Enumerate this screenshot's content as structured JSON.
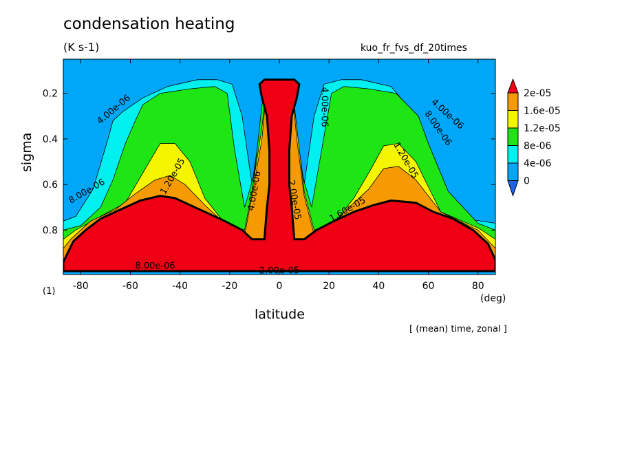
{
  "title": "condensation heating",
  "units": "(K s-1)",
  "run_name": "kuo_fr_fvs_df_20times",
  "panel_label": "(1)",
  "x_unit": "(deg)",
  "averaging_note": "[ (mean) time, zonal ]",
  "chart_data": {
    "type": "heatmap",
    "title": "condensation heating",
    "xlabel": "latitude",
    "ylabel": "sigma",
    "xlim": [
      -87,
      87
    ],
    "ylim": [
      0.995,
      0.05
    ],
    "y_reversed": true,
    "grid": false,
    "x_ticks": [
      -80,
      -60,
      -40,
      -20,
      0,
      20,
      40,
      60,
      80
    ],
    "y_ticks": [
      0.2,
      0.4,
      0.6,
      0.8
    ],
    "colorbar": {
      "placement": "right",
      "labels": [
        "2e-05",
        "1.6e-05",
        "1.2e-05",
        "8e-06",
        "4e-06",
        "0"
      ],
      "levels": [
        0,
        4e-06,
        8e-06,
        1.2e-05,
        1.6e-05,
        2e-05
      ],
      "colors": [
        "#1f64e6",
        "#00a6f7",
        "#00f0f0",
        "#1ee614",
        "#f5f500",
        "#f59a00",
        "#f00014"
      ]
    },
    "contour_labels": [
      "4.00e-06",
      "8.00e-06",
      "1.20e-05",
      "1.60e-05",
      "2.00e-05"
    ],
    "regions": [
      {
        "level": 4e-06,
        "points": [
          [
            -87,
            0.76
          ],
          [
            -87,
            0.98
          ],
          [
            87,
            0.98
          ],
          [
            87,
            0.77
          ],
          [
            75,
            0.75
          ],
          [
            62,
            0.57
          ],
          [
            55,
            0.3
          ],
          [
            45,
            0.17
          ],
          [
            33,
            0.14
          ],
          [
            25,
            0.14
          ],
          [
            18,
            0.16
          ],
          [
            14,
            0.3
          ],
          [
            10,
            0.6
          ],
          [
            6,
            0.3
          ],
          [
            5,
            0.16
          ],
          [
            0,
            0.14
          ],
          [
            -5,
            0.16
          ],
          [
            -7,
            0.3
          ],
          [
            -11,
            0.6
          ],
          [
            -15,
            0.3
          ],
          [
            -19,
            0.16
          ],
          [
            -25,
            0.14
          ],
          [
            -33,
            0.14
          ],
          [
            -45,
            0.17
          ],
          [
            -55,
            0.22
          ],
          [
            -63,
            0.28
          ],
          [
            -67,
            0.32
          ],
          [
            -69,
            0.4
          ],
          [
            -75,
            0.62
          ],
          [
            -82,
            0.74
          ]
        ]
      },
      {
        "level": 8e-06,
        "points": [
          [
            -87,
            0.8
          ],
          [
            -87,
            0.98
          ],
          [
            87,
            0.98
          ],
          [
            87,
            0.8
          ],
          [
            80,
            0.77
          ],
          [
            68,
            0.63
          ],
          [
            60,
            0.42
          ],
          [
            56,
            0.3
          ],
          [
            47,
            0.2
          ],
          [
            36,
            0.18
          ],
          [
            26,
            0.17
          ],
          [
            21,
            0.2
          ],
          [
            17,
            0.45
          ],
          [
            13,
            0.7
          ],
          [
            9,
            0.55
          ],
          [
            6,
            0.25
          ],
          [
            5,
            0.16
          ],
          [
            0,
            0.14
          ],
          [
            -5,
            0.16
          ],
          [
            -7,
            0.25
          ],
          [
            -10,
            0.55
          ],
          [
            -14,
            0.7
          ],
          [
            -18,
            0.45
          ],
          [
            -21,
            0.2
          ],
          [
            -26,
            0.17
          ],
          [
            -36,
            0.18
          ],
          [
            -48,
            0.2
          ],
          [
            -55,
            0.25
          ],
          [
            -58,
            0.32
          ],
          [
            -62,
            0.42
          ],
          [
            -67,
            0.58
          ],
          [
            -72,
            0.7
          ],
          [
            -80,
            0.78
          ]
        ]
      },
      {
        "level": 1.2e-05,
        "points": [
          [
            -87,
            0.84
          ],
          [
            -87,
            0.98
          ],
          [
            87,
            0.98
          ],
          [
            87,
            0.84
          ],
          [
            80,
            0.79
          ],
          [
            65,
            0.72
          ],
          [
            55,
            0.5
          ],
          [
            48,
            0.42
          ],
          [
            42,
            0.43
          ],
          [
            37,
            0.53
          ],
          [
            30,
            0.66
          ],
          [
            22,
            0.77
          ],
          [
            14,
            0.8
          ],
          [
            10,
            0.63
          ],
          [
            7,
            0.35
          ],
          [
            5,
            0.16
          ],
          [
            0,
            0.14
          ],
          [
            -5,
            0.16
          ],
          [
            -7,
            0.35
          ],
          [
            -11,
            0.63
          ],
          [
            -14,
            0.8
          ],
          [
            -22,
            0.77
          ],
          [
            -30,
            0.66
          ],
          [
            -36,
            0.5
          ],
          [
            -42,
            0.42
          ],
          [
            -48,
            0.42
          ],
          [
            -55,
            0.55
          ],
          [
            -62,
            0.68
          ],
          [
            -72,
            0.74
          ],
          [
            -82,
            0.8
          ]
        ]
      },
      {
        "level": 1.6e-05,
        "points": [
          [
            -87,
            0.88
          ],
          [
            -87,
            0.98
          ],
          [
            87,
            0.98
          ],
          [
            87,
            0.88
          ],
          [
            80,
            0.8
          ],
          [
            65,
            0.72
          ],
          [
            55,
            0.58
          ],
          [
            48,
            0.52
          ],
          [
            42,
            0.53
          ],
          [
            36,
            0.62
          ],
          [
            28,
            0.7
          ],
          [
            20,
            0.79
          ],
          [
            14,
            0.82
          ],
          [
            10,
            0.65
          ],
          [
            7,
            0.4
          ],
          [
            5,
            0.16
          ],
          [
            0,
            0.14
          ],
          [
            -5,
            0.16
          ],
          [
            -7,
            0.4
          ],
          [
            -11,
            0.65
          ],
          [
            -14,
            0.82
          ],
          [
            -22,
            0.77
          ],
          [
            -30,
            0.69
          ],
          [
            -38,
            0.6
          ],
          [
            -44,
            0.56
          ],
          [
            -50,
            0.58
          ],
          [
            -58,
            0.64
          ],
          [
            -66,
            0.71
          ],
          [
            -76,
            0.76
          ],
          [
            -84,
            0.84
          ]
        ]
      },
      {
        "level": 2e-05,
        "points": [
          [
            -87,
            0.94
          ],
          [
            -87,
            0.98
          ],
          [
            87,
            0.98
          ],
          [
            87,
            0.93
          ],
          [
            84,
            0.86
          ],
          [
            78,
            0.8
          ],
          [
            70,
            0.75
          ],
          [
            62,
            0.72
          ],
          [
            55,
            0.68
          ],
          [
            45,
            0.67
          ],
          [
            38,
            0.69
          ],
          [
            30,
            0.72
          ],
          [
            22,
            0.76
          ],
          [
            15,
            0.8
          ],
          [
            10,
            0.84
          ],
          [
            6,
            0.84
          ],
          [
            5,
            0.7
          ],
          [
            4,
            0.6
          ],
          [
            4,
            0.45
          ],
          [
            5,
            0.3
          ],
          [
            7,
            0.22
          ],
          [
            8,
            0.16
          ],
          [
            6,
            0.14
          ],
          [
            -6,
            0.14
          ],
          [
            -8,
            0.16
          ],
          [
            -7,
            0.22
          ],
          [
            -5,
            0.3
          ],
          [
            -4,
            0.45
          ],
          [
            -4,
            0.6
          ],
          [
            -5,
            0.7
          ],
          [
            -6,
            0.84
          ],
          [
            -11,
            0.84
          ],
          [
            -15,
            0.8
          ],
          [
            -22,
            0.76
          ],
          [
            -30,
            0.72
          ],
          [
            -36,
            0.69
          ],
          [
            -42,
            0.66
          ],
          [
            -48,
            0.65
          ],
          [
            -56,
            0.67
          ],
          [
            -64,
            0.71
          ],
          [
            -72,
            0.75
          ],
          [
            -78,
            0.8
          ],
          [
            -83,
            0.85
          ]
        ]
      }
    ]
  }
}
